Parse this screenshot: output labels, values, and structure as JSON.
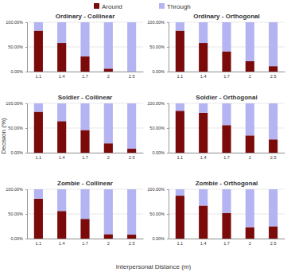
{
  "chart_data": [
    {
      "type": "bar",
      "stacked": true,
      "title": "Ordinary - Collinear",
      "xlabel": "Interpersonal Distance (m)",
      "ylabel": "Decision (%)",
      "legend": "top",
      "grid": true,
      "categories": [
        "1.1",
        "1.4",
        "1.7",
        "2",
        "2.5"
      ],
      "ylim": [
        0,
        100
      ],
      "yticks": [
        {
          "value": 0,
          "label": "0.00%"
        },
        {
          "value": 50,
          "label": "50.00%"
        },
        {
          "value": 100,
          "label": "100.00%"
        }
      ],
      "series": [
        {
          "name": "Around",
          "color": "#7b0a0a",
          "values": [
            83,
            58,
            31,
            6,
            0
          ]
        },
        {
          "name": "Through",
          "color": "#b4b4f2",
          "values": [
            17,
            42,
            69,
            94,
            100
          ]
        }
      ]
    },
    {
      "type": "bar",
      "stacked": true,
      "title": "Ordinary - Orthogonal",
      "grid": true,
      "categories": [
        "1.1",
        "1.4",
        "1.7",
        "2",
        "2.5"
      ],
      "ylim": [
        0,
        100
      ],
      "yticks": [
        {
          "value": 0,
          "label": "0.00%"
        },
        {
          "value": 50,
          "label": "50.00%"
        },
        {
          "value": 100,
          "label": "100.00%"
        }
      ],
      "series": [
        {
          "name": "Around",
          "color": "#7b0a0a",
          "values": [
            83,
            58,
            41,
            21,
            11
          ]
        },
        {
          "name": "Through",
          "color": "#b4b4f2",
          "values": [
            17,
            42,
            59,
            79,
            89
          ]
        }
      ]
    },
    {
      "type": "bar",
      "stacked": true,
      "title": "Soldier - Collinear",
      "grid": true,
      "categories": [
        "1.1",
        "1.4",
        "1.7",
        "2",
        "2.5"
      ],
      "ylim": [
        0,
        100
      ],
      "yticks": [
        {
          "value": 0,
          "label": "0.00%"
        },
        {
          "value": 50,
          "label": "50.00%"
        },
        {
          "value": 100,
          "label": "100.00%"
        }
      ],
      "series": [
        {
          "name": "Around",
          "color": "#7b0a0a",
          "values": [
            83,
            64,
            46,
            19,
            8
          ]
        },
        {
          "name": "Through",
          "color": "#b4b4f2",
          "values": [
            17,
            36,
            54,
            81,
            92
          ]
        }
      ]
    },
    {
      "type": "bar",
      "stacked": true,
      "title": "Soldier - Orthogonal",
      "grid": true,
      "categories": [
        "1.1",
        "1.4",
        "1.7",
        "2",
        "2.5"
      ],
      "ylim": [
        0,
        100
      ],
      "yticks": [
        {
          "value": 0,
          "label": "0.00%"
        },
        {
          "value": 50,
          "label": "50.00%"
        },
        {
          "value": 100,
          "label": "100.00%"
        }
      ],
      "series": [
        {
          "name": "Around",
          "color": "#7b0a0a",
          "values": [
            85,
            81,
            56,
            35,
            27
          ]
        },
        {
          "name": "Through",
          "color": "#b4b4f2",
          "values": [
            15,
            19,
            44,
            65,
            73
          ]
        }
      ]
    },
    {
      "type": "bar",
      "stacked": true,
      "title": "Zombie - Collinear",
      "grid": true,
      "categories": [
        "1.1",
        "1.4",
        "1.7",
        "2",
        "2.5"
      ],
      "ylim": [
        0,
        100
      ],
      "yticks": [
        {
          "value": 0,
          "label": "0.00%"
        },
        {
          "value": 50,
          "label": "50.00%"
        },
        {
          "value": 100,
          "label": "100.00%"
        }
      ],
      "series": [
        {
          "name": "Around",
          "color": "#7b0a0a",
          "values": [
            81,
            56,
            40,
            9,
            8
          ]
        },
        {
          "name": "Through",
          "color": "#b4b4f2",
          "values": [
            19,
            44,
            60,
            91,
            92
          ]
        }
      ]
    },
    {
      "type": "bar",
      "stacked": true,
      "title": "Zombie - Orthogonal",
      "grid": true,
      "categories": [
        "1.1",
        "1.4",
        "1.7",
        "2",
        "2.5"
      ],
      "ylim": [
        0,
        100
      ],
      "yticks": [
        {
          "value": 0,
          "label": "0.00%"
        },
        {
          "value": 50,
          "label": "50.00%"
        },
        {
          "value": 100,
          "label": "100.00%"
        }
      ],
      "series": [
        {
          "name": "Around",
          "color": "#7b0a0a",
          "values": [
            87,
            67,
            52,
            23,
            25
          ]
        },
        {
          "name": "Through",
          "color": "#b4b4f2",
          "values": [
            13,
            33,
            48,
            77,
            75
          ]
        }
      ]
    }
  ]
}
